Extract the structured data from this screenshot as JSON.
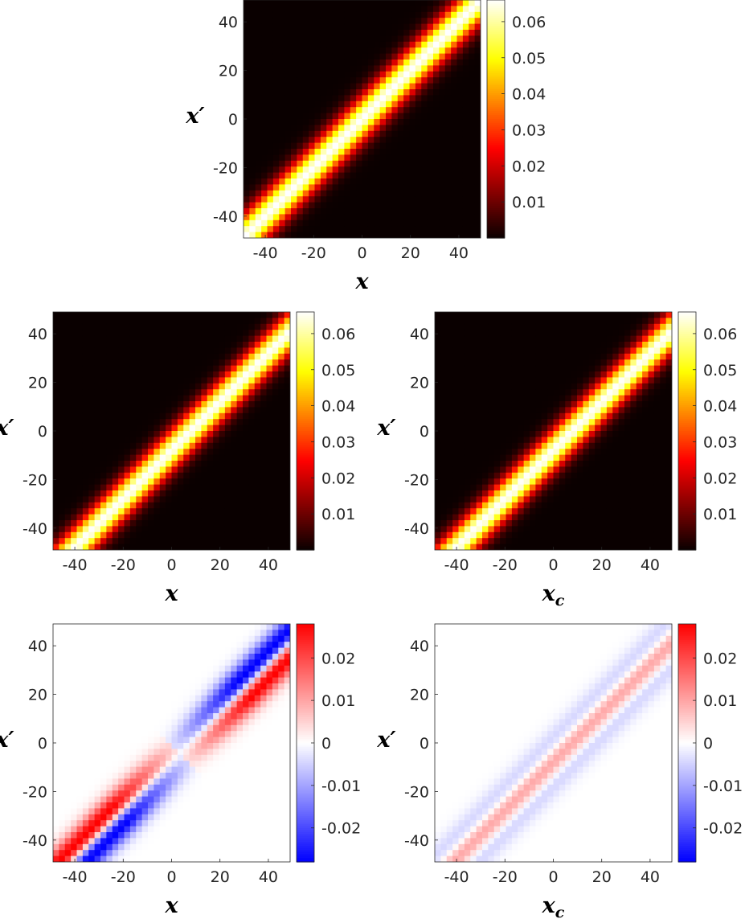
{
  "chart_data": [
    {
      "id": "top",
      "type": "heatmap",
      "colormap": "hot",
      "xlabel": "x",
      "xlabel_sub": "",
      "ylabel": "x′",
      "x_ticks": [
        "-40",
        "-20",
        "0",
        "20",
        "40"
      ],
      "y_ticks": [
        "40",
        "20",
        "0",
        "-20",
        "-40"
      ],
      "xlim": [
        -49,
        49
      ],
      "ylim": [
        -49,
        49
      ],
      "grid_n": 40,
      "band": {
        "kind": "gauss",
        "peak": 0.066,
        "sigma": 6.5,
        "offset": 0
      },
      "colorbar": {
        "min": 0,
        "max": 0.066,
        "ticks": [
          "0.06",
          "0.05",
          "0.04",
          "0.03",
          "0.02",
          "0.01"
        ],
        "tick_values": [
          0.06,
          0.05,
          0.04,
          0.03,
          0.02,
          0.01
        ]
      }
    },
    {
      "id": "middle-left",
      "type": "heatmap",
      "colormap": "hot",
      "xlabel": "x",
      "xlabel_sub": "",
      "ylabel": "x′",
      "x_ticks": [
        "-40",
        "-20",
        "0",
        "20",
        "40"
      ],
      "y_ticks": [
        "40",
        "20",
        "0",
        "-20",
        "-40"
      ],
      "xlim": [
        -49,
        49
      ],
      "ylim": [
        -49,
        49
      ],
      "grid_n": 40,
      "band": {
        "kind": "gauss",
        "peak": 0.066,
        "sigma": 6.0,
        "offset": -8
      },
      "colorbar": {
        "min": 0,
        "max": 0.066,
        "ticks": [
          "0.06",
          "0.05",
          "0.04",
          "0.03",
          "0.02",
          "0.01"
        ],
        "tick_values": [
          0.06,
          0.05,
          0.04,
          0.03,
          0.02,
          0.01
        ]
      }
    },
    {
      "id": "middle-right",
      "type": "heatmap",
      "colormap": "hot",
      "xlabel": "x",
      "xlabel_sub": "c",
      "ylabel": "x′",
      "x_ticks": [
        "-40",
        "-20",
        "0",
        "20",
        "40"
      ],
      "y_ticks": [
        "40",
        "20",
        "0",
        "-20",
        "-40"
      ],
      "xlim": [
        -49,
        49
      ],
      "ylim": [
        -49,
        49
      ],
      "grid_n": 40,
      "band": {
        "kind": "gauss",
        "peak": 0.066,
        "sigma": 6.0,
        "offset": -8
      },
      "colorbar": {
        "min": 0,
        "max": 0.066,
        "ticks": [
          "0.06",
          "0.05",
          "0.04",
          "0.03",
          "0.02",
          "0.01"
        ],
        "tick_values": [
          0.06,
          0.05,
          0.04,
          0.03,
          0.02,
          0.01
        ]
      }
    },
    {
      "id": "bottom-left",
      "type": "heatmap",
      "colormap": "bwr",
      "xlabel": "x",
      "xlabel_sub": "",
      "ylabel": "x′",
      "x_ticks": [
        "-40",
        "-20",
        "0",
        "20",
        "40"
      ],
      "y_ticks": [
        "40",
        "20",
        "0",
        "-20",
        "-40"
      ],
      "xlim": [
        -49,
        49
      ],
      "ylim": [
        -49,
        49
      ],
      "grid_n": 40,
      "band": {
        "kind": "dipole",
        "peak": 0.028,
        "sigma": 6.0,
        "offset": -8
      },
      "colorbar": {
        "min": -0.028,
        "max": 0.028,
        "ticks": [
          "0.02",
          "0.01",
          "0",
          "-0.01",
          "-0.02"
        ],
        "tick_values": [
          0.02,
          0.01,
          0,
          -0.01,
          -0.02
        ]
      }
    },
    {
      "id": "bottom-right",
      "type": "heatmap",
      "colormap": "bwr",
      "xlabel": "x",
      "xlabel_sub": "c",
      "ylabel": "x′",
      "x_ticks": [
        "-40",
        "-20",
        "0",
        "20",
        "40"
      ],
      "y_ticks": [
        "40",
        "20",
        "0",
        "-20",
        "-40"
      ],
      "xlim": [
        -49,
        49
      ],
      "ylim": [
        -49,
        49
      ],
      "grid_n": 40,
      "band": {
        "kind": "ridge",
        "peak": 0.0095,
        "sigma": 6.0,
        "offset": -8
      },
      "colorbar": {
        "min": -0.028,
        "max": 0.028,
        "ticks": [
          "0.02",
          "0.01",
          "0",
          "-0.01",
          "-0.02"
        ],
        "tick_values": [
          0.02,
          0.01,
          0,
          -0.01,
          -0.02
        ]
      }
    }
  ]
}
